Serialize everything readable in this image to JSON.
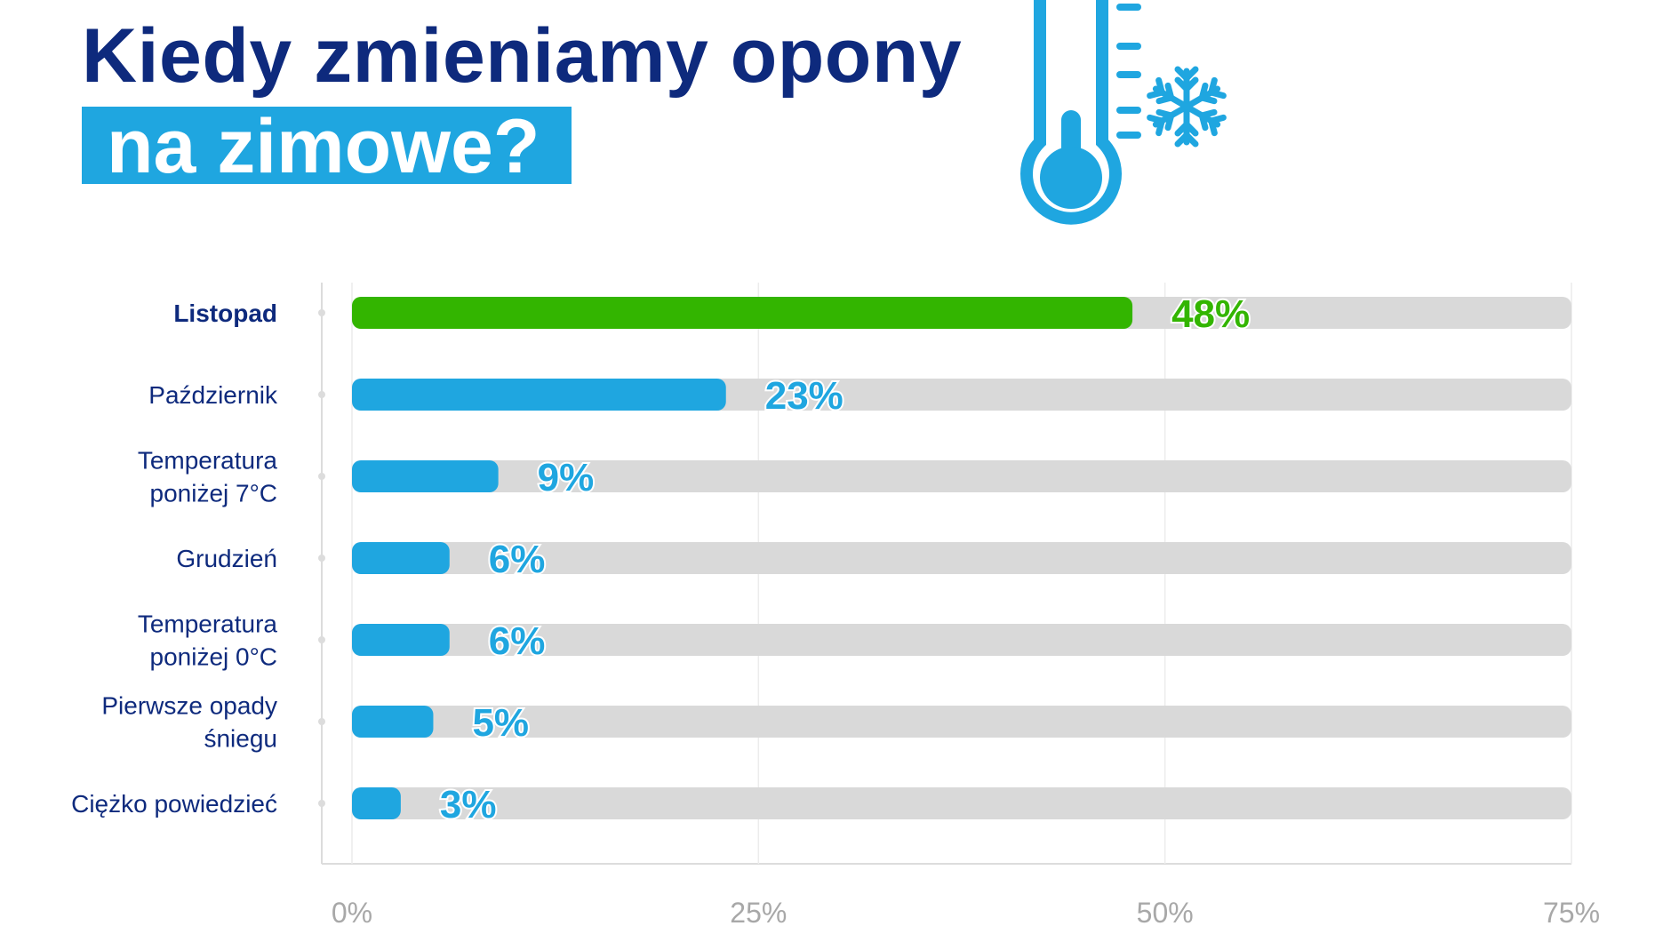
{
  "title": {
    "line1": "Kiedy zmieniamy opony",
    "line2": "na zimowe?"
  },
  "icons": [
    "thermometer-icon",
    "snowflake-icon"
  ],
  "colors": {
    "title": "#0e2a7d",
    "accent_blue": "#1fa6e0",
    "highlight_green": "#33b500",
    "track_gray": "#d9d9d9",
    "tick_gray": "#a8a8a8"
  },
  "chart_data": {
    "type": "bar",
    "orientation": "horizontal",
    "categories": [
      [
        "Listopad"
      ],
      [
        "Październik"
      ],
      [
        "Temperatura",
        "poniżej 7°C"
      ],
      [
        "Grudzień"
      ],
      [
        "Temperatura",
        "poniżej 0°C"
      ],
      [
        "Pierwsze opady",
        "śniegu"
      ],
      [
        "Ciężko powiedzieć"
      ]
    ],
    "values": [
      48,
      23,
      9,
      6,
      6,
      5,
      3
    ],
    "value_labels": [
      "48%",
      "23%",
      "9%",
      "6%",
      "6%",
      "5%",
      "3%"
    ],
    "highlight_index": 0,
    "xlim": [
      0,
      75
    ],
    "xticks": [
      0,
      25,
      50,
      75
    ],
    "xtick_labels": [
      "0%",
      "25%",
      "50%",
      "75%"
    ],
    "grid": true,
    "legend": "none"
  }
}
